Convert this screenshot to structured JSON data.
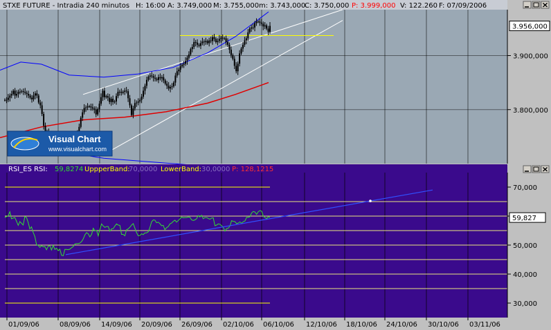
{
  "colors": {
    "price_bg": "#9aa8b4",
    "rsi_bg": "#3a0a8c",
    "axis_bg": "#c0c0c0",
    "candle": "#000000",
    "band": "#0000ff",
    "ma": "#e00000",
    "channel": "#ffffff",
    "level": "#ffff00",
    "rsi_line": "#33dd33",
    "rsi_trend": "#3050ff"
  },
  "price_panel": {
    "header": {
      "symbol": "STXE FUTURE - Intradia 240 minutos",
      "h": "H: 16:00",
      "a": "A: 3.749,000",
      "m": "M: 3.755,000",
      "mn": "m: 3.743,000",
      "c": "C: 3.750,000",
      "p": "P: 3.999,000",
      "v": "V: 122.260",
      "f": "F: 07/09/2006"
    },
    "current_value": "3.956,000",
    "logo": {
      "title": "Visual Chart",
      "url": "www.visualchart.com"
    }
  },
  "rsi_panel": {
    "header": {
      "name": "RSI_ES RSI:",
      "rsi_val": "59,8274",
      "upper_label": "UppperBand:",
      "upper_val": "70,0000",
      "lower_label": "LowerBand:",
      "lower_val": "30,0000",
      "p": "P: 128,1215"
    },
    "current_value": "59,827"
  },
  "window_buttons": [
    "minimize",
    "restore",
    "close"
  ],
  "chart_data": {
    "type": "candlestick",
    "x_labels": [
      "01/09/06",
      "08/09/06",
      "14/09/06",
      "20/09/06",
      "26/09/06",
      "02/10/06",
      "06/10/06",
      "12/10/06",
      "18/10/06",
      "24/10/06",
      "30/10/06",
      "03/11/06"
    ],
    "price_axis": {
      "ticks": [
        "3.800,000",
        "3.900,000"
      ],
      "tick_values": [
        3800,
        3900
      ],
      "ylim": [
        3700,
        3985
      ]
    },
    "rsi_axis": {
      "ticks": [
        "70,000",
        "60,000",
        "50,000",
        "40,000",
        "30,000"
      ],
      "tick_values": [
        70,
        60,
        50,
        40,
        30
      ],
      "ylim": [
        25,
        75
      ]
    },
    "horizontal_level": 3937,
    "close": [
      3818,
      3818,
      3822,
      3826,
      3829,
      3835,
      3826,
      3829,
      3833,
      3833,
      3834,
      3833,
      3831,
      3829,
      3826,
      3822,
      3819,
      3826,
      3830,
      3826,
      3813,
      3808,
      3792,
      3770,
      3760,
      3760,
      3751,
      3745,
      3750,
      3752,
      3752,
      3750,
      3748,
      3748,
      3749,
      3754,
      3752,
      3748,
      3750,
      3751,
      3744,
      3752,
      3751,
      3758,
      3768,
      3785,
      3795,
      3803,
      3804,
      3806,
      3806,
      3804,
      3802,
      3800,
      3791,
      3801,
      3811,
      3823,
      3835,
      3823,
      3825,
      3822,
      3814,
      3820,
      3814,
      3815,
      3825,
      3833,
      3833,
      3831,
      3833,
      3835,
      3834,
      3821,
      3808,
      3790,
      3802,
      3812,
      3813,
      3815,
      3818,
      3824,
      3835,
      3844,
      3855,
      3861,
      3863,
      3862,
      3859,
      3857,
      3855,
      3860,
      3858,
      3860,
      3854,
      3848,
      3844,
      3839,
      3842,
      3843,
      3850,
      3863,
      3871,
      3874,
      3880,
      3883,
      3885,
      3890,
      3896,
      3902,
      3912,
      3916,
      3925,
      3924,
      3920,
      3918,
      3923,
      3926,
      3925,
      3927,
      3923,
      3928,
      3927,
      3934,
      3931,
      3925,
      3927,
      3931,
      3933,
      3932,
      3932,
      3925,
      3920,
      3911,
      3901,
      3894,
      3881,
      3871,
      3885,
      3904,
      3913,
      3920,
      3928,
      3932,
      3943,
      3950,
      3952,
      3952,
      3960,
      3963,
      3963,
      3961,
      3959,
      3954,
      3956,
      3950,
      3944,
      3955
    ],
    "ma": [
      [
        0,
        3748
      ],
      [
        60,
        3768
      ],
      [
        120,
        3781
      ],
      [
        180,
        3786
      ],
      [
        240,
        3796
      ],
      [
        300,
        3812
      ],
      [
        340,
        3828
      ],
      [
        388,
        3850
      ]
    ],
    "upper_band": [
      [
        0,
        3873
      ],
      [
        30,
        3888
      ],
      [
        60,
        3884
      ],
      [
        100,
        3864
      ],
      [
        150,
        3860
      ],
      [
        200,
        3866
      ],
      [
        250,
        3878
      ],
      [
        300,
        3905
      ],
      [
        340,
        3935
      ],
      [
        388,
        3981
      ]
    ],
    "lower_band": [
      [
        60,
        3717
      ],
      [
        100,
        3720
      ],
      [
        150,
        3710
      ],
      [
        200,
        3705
      ],
      [
        250,
        3700
      ],
      [
        300,
        3695
      ],
      [
        340,
        3683
      ],
      [
        380,
        3670
      ],
      [
        388,
        3675
      ]
    ],
    "channel_upper": [
      [
        120,
        3828
      ],
      [
        495,
        3985
      ]
    ],
    "channel_lower": [
      [
        150,
        3717
      ],
      [
        495,
        3965
      ]
    ],
    "rsi": [
      59.5,
      59.8,
      60.1,
      61.5,
      59.1,
      59.3,
      59.5,
      58.2,
      56.8,
      58.1,
      57.5,
      56.9,
      59.8,
      59.5,
      57.8,
      55.6,
      56.3,
      54.4,
      52.9,
      50.1,
      49.9,
      49.2,
      49.8,
      49.4,
      49.5,
      48.4,
      49.6,
      49.8,
      48.3,
      49.9,
      48.5,
      48.9,
      48.1,
      48.6,
      46.5,
      46.3,
      48.5,
      48.5,
      48.4,
      48.6,
      49.1,
      49.5,
      50.4,
      50.5,
      50.5,
      50.7,
      51.2,
      52.1,
      53.5,
      54.3,
      53.9,
      52.8,
      53.7,
      55.8,
      54.9,
      55.1,
      53.2,
      55.4,
      57.3,
      56.6,
      56.1,
      56.4,
      56.4,
      54.8,
      55.6,
      55.7,
      56.6,
      57.3,
      56.9,
      56.8,
      53.7,
      53.7,
      53.2,
      55.3,
      55.6,
      56.2,
      56.9,
      57.4,
      55.8,
      54.3,
      53.2,
      53.3,
      53.9,
      53.6,
      54.2,
      54.2,
      54.6,
      56.1,
      58.0,
      58.7,
      58.6,
      57.7,
      57.9,
      57.4,
      56.7,
      56.8,
      55.3,
      56.0,
      56.4,
      57.3,
      57.6,
      58.2,
      58.6,
      57.9,
      58.5,
      59.0,
      59.7,
      59.4,
      59.5,
      59.5,
      59.7,
      59.6,
      58.7,
      58.5,
      58.7,
      59.1,
      60.2,
      59.7,
      60.3,
      59.1,
      59.5,
      59.5,
      59.2,
      58.9,
      59.3,
      59.4,
      56.7,
      56.9,
      57.3,
      57.2,
      56.7,
      56.1,
      54.8,
      55.7,
      55.8,
      56.6,
      58.4,
      58.2,
      58.1,
      57.4,
      57.6,
      58.0,
      57.5,
      58.1,
      58.3,
      59.6,
      59.6,
      59.8,
      61.1,
      61.6,
      61.4,
      60.6,
      61.5,
      61.9,
      61.7,
      60.0,
      59.5,
      59.1,
      59.8,
      59.5
    ],
    "rsi_trendline": [
      [
        95,
        46.7
      ],
      [
        625,
        69.0
      ]
    ],
    "rsi_horizontal_lines": [
      70,
      65,
      60,
      55,
      50,
      45,
      40,
      35,
      30
    ]
  }
}
